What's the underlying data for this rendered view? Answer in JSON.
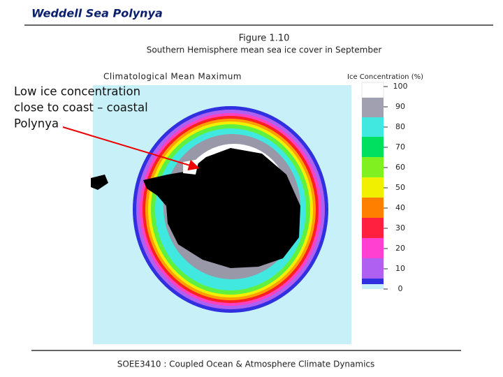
{
  "header": {
    "title": "Weddell Sea Polynya"
  },
  "figure": {
    "number": "Figure 1.10",
    "caption": "Southern Hemisphere mean sea ice cover in September",
    "map_title": "Climatological Mean Maximum",
    "colorbar": {
      "title": "Ice Concentration (%)",
      "labels": [
        100,
        90,
        80,
        70,
        60,
        50,
        40,
        30,
        20,
        10,
        0
      ]
    }
  },
  "annotation": {
    "lines": [
      "Low ice concentration",
      "close to coast – coastal",
      "Polynya"
    ]
  },
  "footer": {
    "text": "SOEE3410 : Coupled Ocean & Atmosphere Climate Dynamics"
  }
}
